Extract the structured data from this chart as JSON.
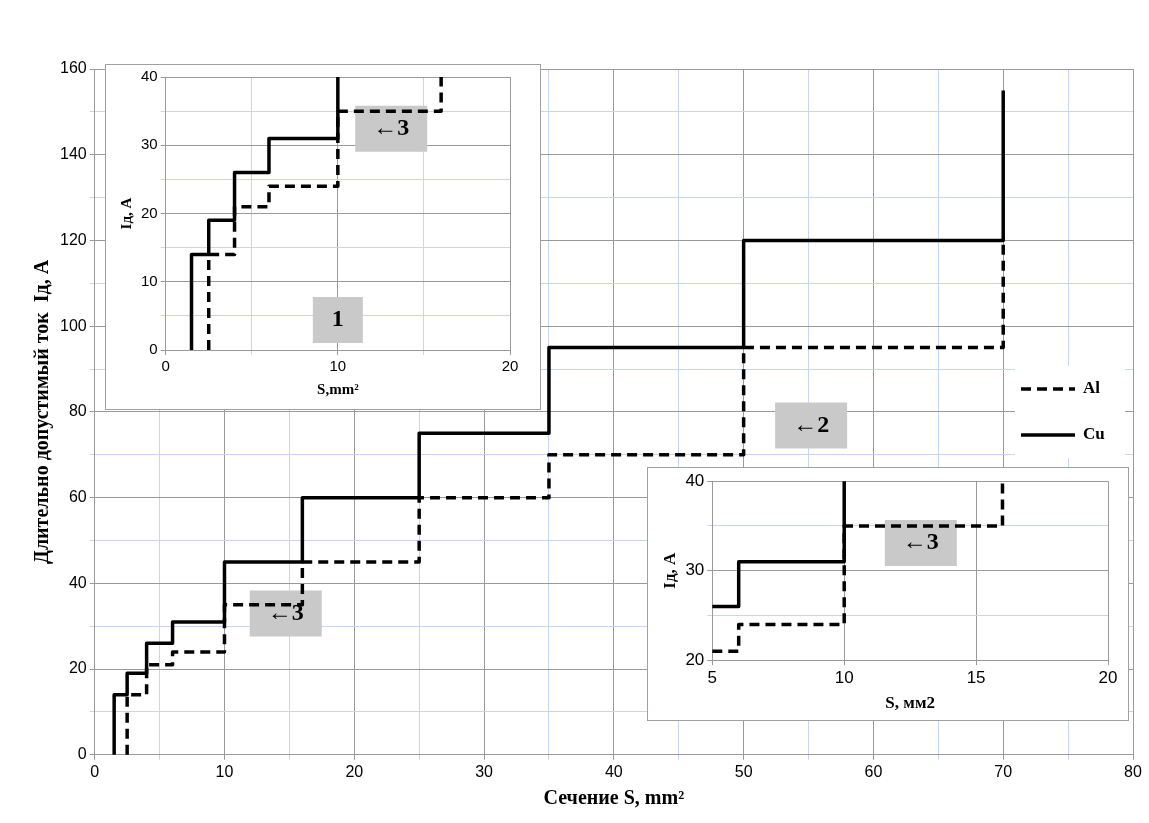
{
  "chart_data": [
    {
      "type": "step",
      "ylabel": "Длительно допустимый ток  Iд, А",
      "xlabel": "Сечение S, mm²",
      "xlim": [
        0,
        80
      ],
      "ylim": [
        0,
        160
      ],
      "xticks": [
        0,
        {
          "value": 5,
          "label": null
        },
        10,
        {
          "value": 15,
          "label": null
        },
        20,
        {
          "value": 25,
          "label": null
        },
        30,
        {
          "value": 35,
          "label": null
        },
        40,
        {
          "value": 45,
          "label": null
        },
        50,
        {
          "value": 55,
          "label": null
        },
        60,
        {
          "value": 65,
          "label": null
        },
        70,
        {
          "value": 75,
          "label": null
        },
        80
      ],
      "yticks": [
        0,
        {
          "value": 10,
          "label": null
        },
        20,
        {
          "value": 30,
          "label": null
        },
        40,
        {
          "value": 50,
          "label": null
        },
        60,
        {
          "value": 70,
          "label": null
        },
        80,
        {
          "value": 90,
          "label": null
        },
        100,
        {
          "value": 110,
          "label": null
        },
        120,
        {
          "value": 130,
          "label": null
        },
        140,
        {
          "value": 150,
          "label": null
        },
        160
      ],
      "grid": true,
      "legend": "right",
      "series": [
        {
          "name": "Al",
          "color": "#000000",
          "line_style": "dashed",
          "x": [
            2.5,
            2.5,
            4,
            6,
            10,
            16,
            25,
            35,
            50,
            70
          ],
          "values": [
            0,
            14,
            21,
            24,
            35,
            45,
            60,
            70,
            95,
            120
          ]
        },
        {
          "name": "Cu",
          "color": "#000000",
          "line_style": "solid",
          "x": [
            1.5,
            1.5,
            2.5,
            4,
            6,
            10,
            16,
            25,
            35,
            50,
            70
          ],
          "values": [
            0,
            14,
            19,
            26,
            31,
            45,
            60,
            75,
            95,
            120,
            155
          ]
        }
      ],
      "annotations": [
        "←3",
        "←2"
      ]
    },
    {
      "type": "step",
      "ylabel": "Iд, A",
      "xlabel": "S,mm²",
      "xlim": [
        0,
        20
      ],
      "ylim": [
        0,
        40
      ],
      "xticks": [
        0,
        {
          "value": 5,
          "label": null
        },
        10,
        {
          "value": 15,
          "label": null
        },
        20
      ],
      "yticks": [
        0,
        {
          "value": 5,
          "label": null
        },
        10,
        {
          "value": 15,
          "label": null
        },
        20,
        {
          "value": 25,
          "label": null
        },
        30,
        {
          "value": 35,
          "label": null
        },
        40
      ],
      "grid": true,
      "series": [
        {
          "color": "#000000",
          "line_style": "dashed",
          "x": [
            2.5,
            2.5,
            4,
            6,
            10,
            16
          ],
          "values": [
            0,
            14,
            21,
            24,
            35,
            40
          ]
        },
        {
          "color": "#000000",
          "line_style": "solid",
          "x": [
            1.5,
            1.5,
            2.5,
            4,
            6,
            10
          ],
          "values": [
            0,
            14,
            19,
            26,
            31,
            40
          ]
        }
      ],
      "annotations": [
        "1",
        "←3"
      ]
    },
    {
      "type": "step",
      "ylabel": "Iд, A",
      "xlabel": "S, мм2",
      "xlim": [
        5,
        20
      ],
      "ylim": [
        20,
        40
      ],
      "xticks": [
        5,
        10,
        15,
        20
      ],
      "yticks": [
        20,
        {
          "value": 25,
          "label": null
        },
        30,
        {
          "value": 35,
          "label": null
        },
        40
      ],
      "grid": true,
      "series": [
        {
          "color": "#000000",
          "line_style": "dashed",
          "x": [
            5,
            6,
            10,
            16
          ],
          "values": [
            21,
            24,
            35,
            40
          ]
        },
        {
          "color": "#000000",
          "line_style": "solid",
          "x": [
            5,
            6,
            10
          ],
          "values": [
            26,
            31,
            40
          ]
        }
      ],
      "annotations": [
        "←3"
      ]
    }
  ]
}
